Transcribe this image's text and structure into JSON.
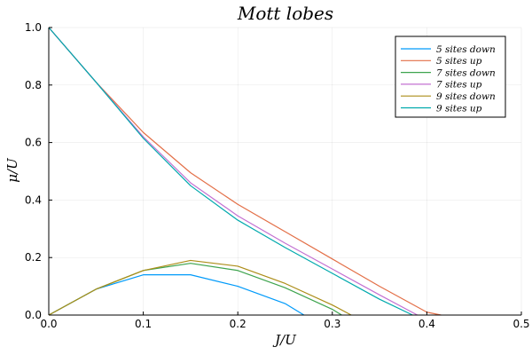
{
  "chart_data": {
    "type": "line",
    "title": "Mott lobes",
    "xlabel": "J/U",
    "ylabel": "μ/U",
    "xlim": [
      0,
      0.5
    ],
    "ylim": [
      0,
      1.0
    ],
    "x_ticks": [
      "0.0",
      "0.1",
      "0.2",
      "0.3",
      "0.4",
      "0.5"
    ],
    "y_ticks": [
      "0.0",
      "0.2",
      "0.4",
      "0.6",
      "0.8",
      "1.0"
    ],
    "grid": true,
    "legend_position": "top-right",
    "series": [
      {
        "name": "5 sites down",
        "color": "#009AFA",
        "x": [
          0,
          0.05,
          0.1,
          0.15,
          0.2,
          0.25,
          0.27
        ],
        "y": [
          0,
          0.09,
          0.14,
          0.14,
          0.1,
          0.04,
          0
        ]
      },
      {
        "name": "5 sites up",
        "color": "#E36F47",
        "x": [
          0,
          0.05,
          0.1,
          0.15,
          0.2,
          0.25,
          0.3,
          0.35,
          0.4,
          0.415
        ],
        "y": [
          1.0,
          0.81,
          0.635,
          0.495,
          0.385,
          0.29,
          0.195,
          0.1,
          0.01,
          0
        ]
      },
      {
        "name": "7 sites down",
        "color": "#3EA44E",
        "x": [
          0,
          0.05,
          0.1,
          0.15,
          0.2,
          0.25,
          0.3,
          0.31
        ],
        "y": [
          0,
          0.09,
          0.155,
          0.18,
          0.155,
          0.095,
          0.02,
          0
        ]
      },
      {
        "name": "7 sites up",
        "color": "#C371D2",
        "x": [
          0,
          0.05,
          0.1,
          0.15,
          0.2,
          0.25,
          0.3,
          0.35,
          0.39
        ],
        "y": [
          1.0,
          0.81,
          0.62,
          0.46,
          0.345,
          0.25,
          0.16,
          0.07,
          0
        ]
      },
      {
        "name": "9 sites down",
        "color": "#AC8D18",
        "x": [
          0,
          0.05,
          0.1,
          0.15,
          0.2,
          0.25,
          0.3,
          0.32
        ],
        "y": [
          0,
          0.09,
          0.155,
          0.19,
          0.17,
          0.11,
          0.035,
          0
        ]
      },
      {
        "name": "9 sites up",
        "color": "#00A9AD",
        "x": [
          0,
          0.05,
          0.1,
          0.15,
          0.2,
          0.25,
          0.3,
          0.35,
          0.385
        ],
        "y": [
          1.0,
          0.81,
          0.615,
          0.45,
          0.33,
          0.235,
          0.145,
          0.055,
          0
        ]
      }
    ]
  }
}
